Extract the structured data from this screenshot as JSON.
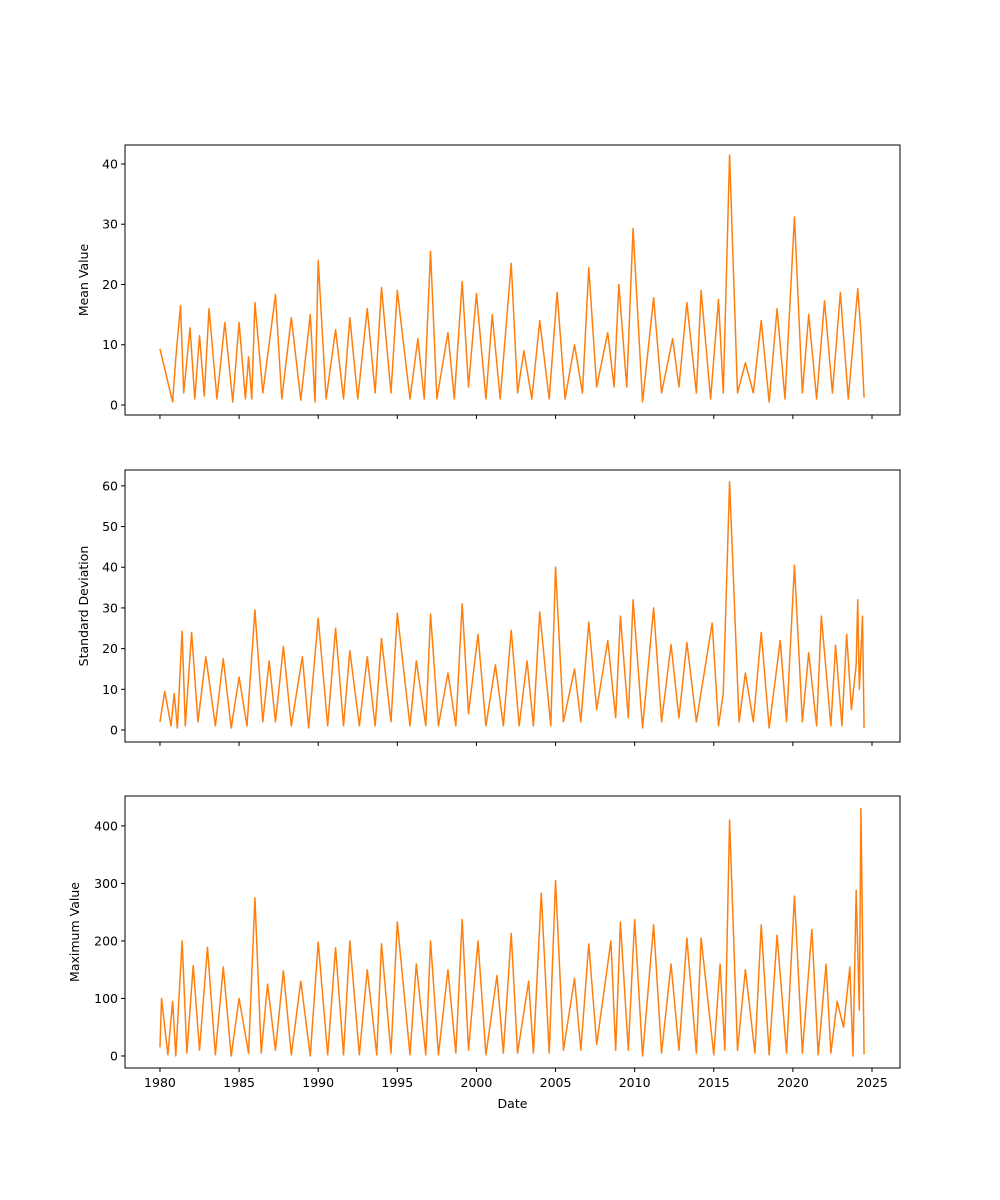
{
  "chart_data": [
    {
      "type": "line",
      "ylabel": "Mean Value",
      "color": "#ff7f0e",
      "x": [
        1980.0,
        1980.8,
        1981.0,
        1981.3,
        1981.5,
        1981.9,
        1982.2,
        1982.5,
        1982.8,
        1983.1,
        1983.6,
        1984.1,
        1984.6,
        1985.0,
        1985.4,
        1985.6,
        1985.8,
        1986.0,
        1986.5,
        1987.3,
        1987.7,
        1988.3,
        1988.9,
        1989.5,
        1989.8,
        1990.0,
        1990.5,
        1991.1,
        1991.6,
        1992.0,
        1992.5,
        1993.1,
        1993.6,
        1994.0,
        1994.6,
        1995.0,
        1995.8,
        1996.3,
        1996.7,
        1997.1,
        1997.5,
        1998.2,
        1998.6,
        1999.1,
        1999.5,
        2000.0,
        2000.6,
        2001.0,
        2001.5,
        2002.2,
        2002.6,
        2003.0,
        2003.5,
        2004.0,
        2004.6,
        2005.1,
        2005.6,
        2006.2,
        2006.7,
        2007.1,
        2007.6,
        2008.3,
        2008.7,
        2009.0,
        2009.5,
        2009.9,
        2010.5,
        2011.2,
        2011.7,
        2012.4,
        2012.8,
        2013.3,
        2013.9,
        2014.2,
        2014.8,
        2015.3,
        2015.6,
        2016.0,
        2016.5,
        2017.0,
        2017.5,
        2018.0,
        2018.5,
        2019.0,
        2019.5,
        2020.1,
        2020.6,
        2021.0,
        2021.5,
        2022.0,
        2022.5,
        2023.0,
        2023.5,
        2024.1,
        2024.3,
        2024.5
      ],
      "values": [
        9.3,
        0.5,
        7.8,
        16.5,
        2,
        12.8,
        1,
        11.5,
        1.5,
        16,
        1,
        13.7,
        0.5,
        13.7,
        1,
        8,
        1,
        17,
        2,
        18.3,
        1,
        14.5,
        0.8,
        15,
        0.5,
        24,
        1,
        12.5,
        1,
        14.5,
        1,
        16,
        2,
        19.5,
        2,
        19,
        1,
        11,
        1,
        25.5,
        1,
        12,
        1,
        20.5,
        3,
        18.5,
        1,
        15,
        1,
        23.5,
        2,
        9,
        1,
        14,
        1,
        18.7,
        1,
        10,
        2,
        22.8,
        3,
        12,
        3,
        20,
        3,
        29.3,
        0.5,
        17.8,
        2,
        11,
        3,
        17,
        2,
        19,
        1,
        17.5,
        2,
        41.5,
        2,
        7,
        2,
        14,
        0.5,
        16,
        1,
        31.2,
        2,
        15,
        1,
        17.3,
        2,
        18.7,
        1,
        19.3,
        12,
        1.2
      ],
      "ylim": [
        -1.66,
        43.15
      ],
      "yticks": [
        0,
        10,
        20,
        30,
        40
      ]
    },
    {
      "type": "line",
      "ylabel": "Standard Deviation",
      "color": "#ff7f0e",
      "x": [
        1980.0,
        1980.3,
        1980.7,
        1980.9,
        1981.1,
        1981.4,
        1981.6,
        1982.0,
        1982.4,
        1982.9,
        1983.5,
        1984.0,
        1984.5,
        1985.0,
        1985.5,
        1986.0,
        1986.5,
        1986.9,
        1987.3,
        1987.8,
        1988.3,
        1989.0,
        1989.4,
        1990.0,
        1990.6,
        1991.1,
        1991.6,
        1992.0,
        1992.6,
        1993.1,
        1993.6,
        1994.0,
        1994.6,
        1995.0,
        1995.8,
        1996.2,
        1996.8,
        1997.1,
        1997.6,
        1998.2,
        1998.7,
        1999.1,
        1999.5,
        2000.1,
        2000.6,
        2001.2,
        2001.7,
        2002.2,
        2002.7,
        2003.2,
        2003.6,
        2004.0,
        2004.7,
        2005.0,
        2005.5,
        2006.2,
        2006.6,
        2007.1,
        2007.6,
        2008.3,
        2008.8,
        2009.1,
        2009.6,
        2009.9,
        2010.5,
        2011.2,
        2011.7,
        2012.3,
        2012.8,
        2013.3,
        2013.9,
        2014.9,
        2015.3,
        2015.6,
        2016.0,
        2016.6,
        2017.0,
        2017.5,
        2018.0,
        2018.5,
        2019.2,
        2019.6,
        2020.1,
        2020.6,
        2021.0,
        2021.5,
        2021.8,
        2022.4,
        2022.7,
        2023.1,
        2023.4,
        2023.7,
        2024.0,
        2024.1,
        2024.2,
        2024.4,
        2024.5
      ],
      "values": [
        2,
        9.5,
        1,
        9,
        0.5,
        24.3,
        1,
        24,
        2,
        18,
        1,
        17.5,
        0.5,
        13,
        1,
        29.5,
        2,
        17,
        2,
        20.5,
        1,
        18,
        0.5,
        27.5,
        1,
        25,
        1,
        19.5,
        1,
        18,
        1,
        22.5,
        2,
        28.7,
        1,
        17,
        1,
        28.5,
        1,
        14,
        1,
        31,
        4,
        23.5,
        1,
        16,
        1,
        24.5,
        1,
        17,
        1,
        29,
        1,
        40,
        2,
        15,
        2,
        26.5,
        5,
        22,
        3,
        28,
        3,
        32,
        0.5,
        30,
        2,
        21,
        3,
        21.5,
        2,
        26.3,
        1,
        9,
        61,
        2,
        14,
        2,
        24,
        0.5,
        22,
        2,
        40.5,
        2,
        19,
        1,
        28,
        1,
        20.8,
        1,
        23.5,
        5,
        16,
        32,
        10,
        28,
        0.5
      ],
      "ylim": [
        -2.95,
        63.9
      ],
      "yticks": [
        0,
        10,
        20,
        30,
        40,
        50,
        60
      ]
    },
    {
      "type": "line",
      "ylabel": "Maximum Value",
      "xlabel": "Date",
      "color": "#ff7f0e",
      "x": [
        1980.0,
        1980.1,
        1980.5,
        1980.8,
        1981.0,
        1981.4,
        1981.7,
        1982.1,
        1982.5,
        1983.0,
        1983.5,
        1984.0,
        1984.5,
        1985.0,
        1985.6,
        1986.0,
        1986.4,
        1986.8,
        1987.3,
        1987.8,
        1988.3,
        1988.9,
        1989.5,
        1990.0,
        1990.6,
        1991.1,
        1991.6,
        1992.0,
        1992.6,
        1993.1,
        1993.7,
        1994.0,
        1994.6,
        1995.0,
        1995.8,
        1996.2,
        1996.8,
        1997.1,
        1997.6,
        1998.2,
        1998.7,
        1999.1,
        1999.5,
        2000.1,
        2000.6,
        2001.3,
        2001.7,
        2002.2,
        2002.6,
        2003.3,
        2003.6,
        2004.1,
        2004.6,
        2005.0,
        2005.5,
        2006.2,
        2006.6,
        2007.1,
        2007.6,
        2008.5,
        2008.8,
        2009.1,
        2009.6,
        2010.0,
        2010.5,
        2011.2,
        2011.7,
        2012.3,
        2012.8,
        2013.3,
        2013.9,
        2014.2,
        2015.0,
        2015.4,
        2015.7,
        2016.0,
        2016.5,
        2017.0,
        2017.6,
        2018.0,
        2018.5,
        2019.0,
        2019.6,
        2020.1,
        2020.6,
        2021.2,
        2021.6,
        2022.1,
        2022.4,
        2022.8,
        2023.2,
        2023.6,
        2023.8,
        2024.0,
        2024.2,
        2024.3,
        2024.5
      ],
      "values": [
        15,
        100,
        2,
        95,
        0,
        200,
        5,
        157,
        10,
        189,
        2,
        155,
        0,
        100,
        5,
        275,
        5,
        125,
        10,
        148,
        2,
        130,
        0,
        198,
        2,
        188,
        2,
        200,
        2,
        150,
        2,
        195,
        5,
        233,
        2,
        160,
        2,
        200,
        2,
        150,
        5,
        237,
        10,
        200,
        2,
        140,
        5,
        213,
        5,
        130,
        5,
        283,
        5,
        305,
        10,
        135,
        10,
        195,
        20,
        200,
        10,
        233,
        10,
        237,
        0,
        228,
        5,
        160,
        10,
        205,
        5,
        205,
        2,
        160,
        10,
        410,
        10,
        150,
        5,
        228,
        2,
        210,
        5,
        278,
        5,
        220,
        2,
        160,
        5,
        95,
        50,
        155,
        0,
        288,
        80,
        430,
        3
      ],
      "ylim": [
        -20.9,
        452
      ],
      "yticks": [
        0,
        100,
        200,
        300,
        400
      ],
      "xlim": [
        1977.79,
        2026.77
      ],
      "xticks": [
        1980,
        1985,
        1990,
        1995,
        2000,
        2005,
        2010,
        2015,
        2020,
        2025
      ]
    }
  ]
}
